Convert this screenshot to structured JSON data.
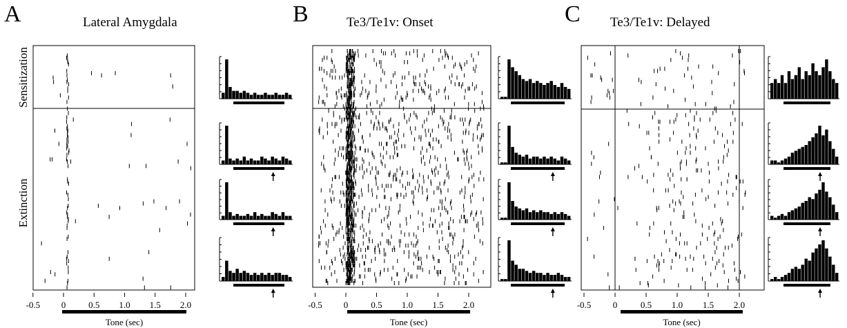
{
  "chart_data": [
    {
      "type": "scatter",
      "panel_label": "A",
      "title": "Lateral Amygdala",
      "xlabel": "Tone (sec)",
      "xlim": [
        -0.5,
        2.4
      ],
      "xticks": [
        "-0.5",
        "0",
        "0.5",
        "1.0",
        "1.5",
        "2.0"
      ],
      "tick_values": [
        -0.5,
        0,
        0.5,
        1.0,
        1.5,
        2.0
      ],
      "tone_interval": [
        0,
        2.0
      ],
      "row_labels": [
        "Sensitization",
        "Extinction"
      ],
      "vertical_lines": [],
      "histogram_profiles": [
        [
          0.15,
          1.0,
          0.3,
          0.2,
          0.2,
          0.15,
          0.2,
          0.15,
          0.1,
          0.15,
          0.1,
          0.1,
          0.15,
          0.1,
          0.1,
          0.15,
          0.1,
          0.1,
          0.15,
          0.1
        ],
        [
          0.1,
          1.0,
          0.15,
          0.1,
          0.15,
          0.1,
          0.2,
          0.1,
          0.15,
          0.1,
          0.1,
          0.2,
          0.15,
          0.1,
          0.2,
          0.15,
          0.1,
          0.2,
          0.15,
          0.1
        ],
        [
          0.1,
          1.0,
          0.2,
          0.1,
          0.15,
          0.1,
          0.1,
          0.15,
          0.1,
          0.2,
          0.1,
          0.15,
          0.1,
          0.1,
          0.2,
          0.15,
          0.1,
          0.2,
          0.1,
          0.1
        ],
        [
          0.1,
          0.5,
          0.25,
          0.2,
          0.3,
          0.2,
          0.25,
          0.2,
          0.15,
          0.2,
          0.15,
          0.2,
          0.15,
          0.2,
          0.15,
          0.2,
          0.2,
          0.15,
          0.15,
          0.1
        ]
      ]
    },
    {
      "type": "scatter",
      "panel_label": "B",
      "title": "Te3/Te1v: Onset",
      "xlabel": "Tone (sec)",
      "xlim": [
        -0.5,
        2.3
      ],
      "xticks": [
        "-0.5",
        "0",
        "0.5",
        "1.0",
        "1.5",
        "2.0"
      ],
      "tick_values": [
        -0.5,
        0,
        0.5,
        1.0,
        1.5,
        2.0
      ],
      "tone_interval": [
        0,
        2.0
      ],
      "row_labels": [],
      "vertical_lines": [],
      "histogram_profiles": [
        [
          0.05,
          0.05,
          1.0,
          0.8,
          0.7,
          0.6,
          0.5,
          0.45,
          0.5,
          0.4,
          0.45,
          0.4,
          0.35,
          0.4,
          0.45,
          0.35,
          0.3,
          0.4,
          0.3,
          0.25
        ],
        [
          0.05,
          0.05,
          1.0,
          0.45,
          0.3,
          0.25,
          0.2,
          0.25,
          0.15,
          0.2,
          0.2,
          0.15,
          0.2,
          0.15,
          0.2,
          0.15,
          0.1,
          0.2,
          0.15,
          0.1
        ],
        [
          0.05,
          0.05,
          1.0,
          0.5,
          0.35,
          0.3,
          0.25,
          0.3,
          0.2,
          0.25,
          0.2,
          0.25,
          0.2,
          0.2,
          0.15,
          0.2,
          0.15,
          0.2,
          0.15,
          0.1
        ],
        [
          0.05,
          0.05,
          1.0,
          0.5,
          0.4,
          0.3,
          0.3,
          0.25,
          0.2,
          0.25,
          0.2,
          0.2,
          0.15,
          0.2,
          0.15,
          0.15,
          0.2,
          0.15,
          0.1,
          0.1
        ]
      ]
    },
    {
      "type": "scatter",
      "panel_label": "C",
      "title": "Te3/Te1v: Delayed",
      "xlabel": "Tone (sec)",
      "xlim": [
        -0.5,
        2.3
      ],
      "xticks": [
        "-0.5",
        "0",
        "0.5",
        "1.0",
        "1.5",
        "2.0"
      ],
      "tick_values": [
        -0.5,
        0,
        0.5,
        1.0,
        1.5,
        2.0
      ],
      "tone_interval": [
        0,
        2.0
      ],
      "row_labels": [],
      "vertical_lines": [
        0,
        2.0
      ],
      "histogram_profiles": [
        [
          0.4,
          0.5,
          0.4,
          0.6,
          0.4,
          0.7,
          0.5,
          0.6,
          0.8,
          0.5,
          0.7,
          0.6,
          0.9,
          0.7,
          0.6,
          0.8,
          1.0,
          0.7,
          0.5,
          0.4
        ],
        [
          0.1,
          0.1,
          0.05,
          0.1,
          0.15,
          0.2,
          0.3,
          0.35,
          0.4,
          0.45,
          0.5,
          0.6,
          0.7,
          0.8,
          1.0,
          0.75,
          0.9,
          0.6,
          0.4,
          0.2
        ],
        [
          0.1,
          0.05,
          0.1,
          0.15,
          0.1,
          0.2,
          0.25,
          0.3,
          0.35,
          0.45,
          0.5,
          0.6,
          0.55,
          0.7,
          0.8,
          1.0,
          0.75,
          0.6,
          0.4,
          0.2
        ],
        [
          0.05,
          0.1,
          0.05,
          0.1,
          0.15,
          0.2,
          0.3,
          0.35,
          0.3,
          0.4,
          0.55,
          0.5,
          0.7,
          0.8,
          0.9,
          1.0,
          0.8,
          0.6,
          0.4,
          0.2
        ]
      ]
    }
  ]
}
